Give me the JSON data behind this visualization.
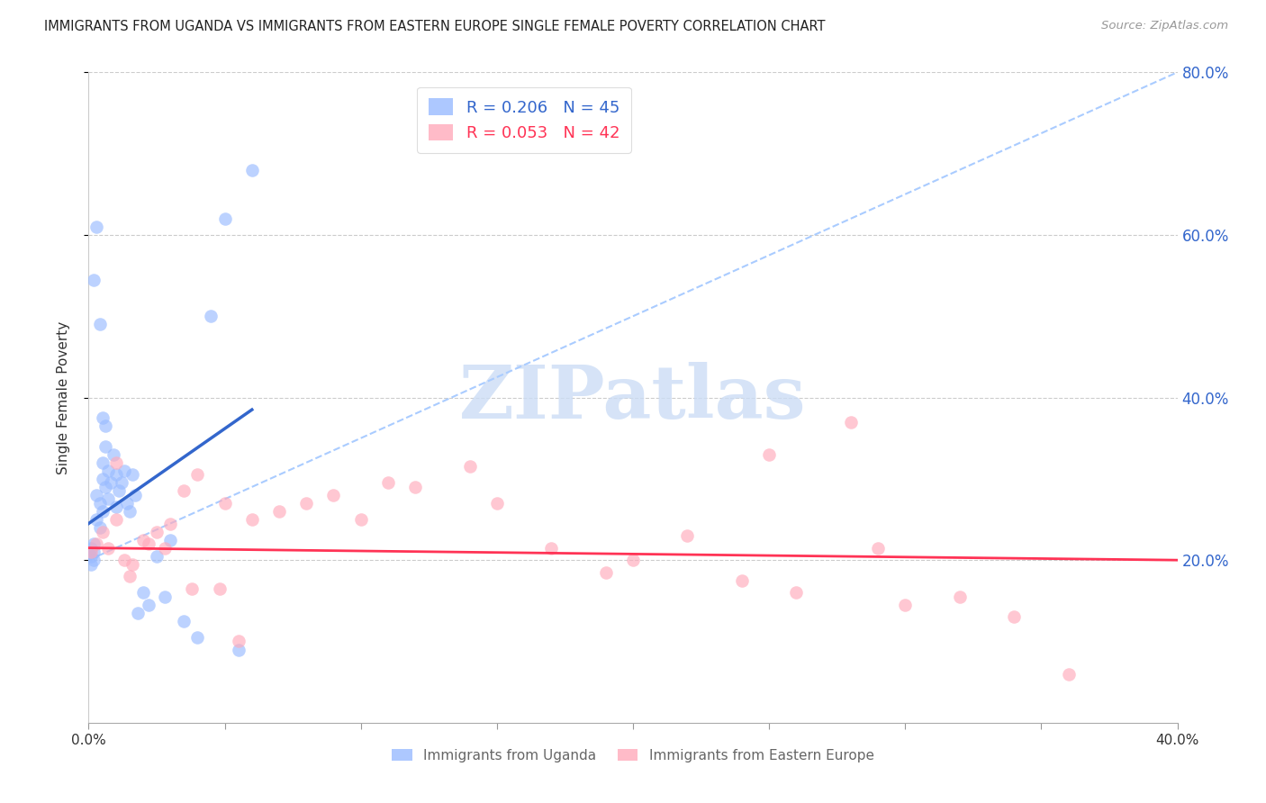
{
  "title": "IMMIGRANTS FROM UGANDA VS IMMIGRANTS FROM EASTERN EUROPE SINGLE FEMALE POVERTY CORRELATION CHART",
  "source": "Source: ZipAtlas.com",
  "ylabel": "Single Female Poverty",
  "legend_label1": "Immigrants from Uganda",
  "legend_label2": "Immigrants from Eastern Europe",
  "R1": "0.206",
  "N1": "45",
  "R2": "0.053",
  "N2": "42",
  "color_blue": "#99bbff",
  "color_pink": "#ffaabb",
  "color_blue_line": "#3366cc",
  "color_pink_line": "#ff3355",
  "color_dashed": "#aaccff",
  "color_right_axis": "#3366cc",
  "xlim": [
    0,
    0.4
  ],
  "ylim": [
    0,
    0.8
  ],
  "watermark": "ZIPatlas",
  "watermark_color": "#ccddf5",
  "uganda_x": [
    0.001,
    0.001,
    0.001,
    0.002,
    0.002,
    0.002,
    0.003,
    0.003,
    0.004,
    0.004,
    0.005,
    0.005,
    0.005,
    0.006,
    0.006,
    0.007,
    0.007,
    0.008,
    0.009,
    0.01,
    0.01,
    0.011,
    0.012,
    0.013,
    0.014,
    0.015,
    0.016,
    0.017,
    0.018,
    0.02,
    0.022,
    0.025,
    0.028,
    0.03,
    0.035,
    0.04,
    0.045,
    0.05,
    0.055,
    0.06,
    0.002,
    0.003,
    0.004,
    0.005,
    0.006
  ],
  "uganda_y": [
    0.195,
    0.205,
    0.215,
    0.2,
    0.21,
    0.22,
    0.28,
    0.25,
    0.24,
    0.27,
    0.32,
    0.3,
    0.26,
    0.34,
    0.29,
    0.31,
    0.275,
    0.295,
    0.33,
    0.305,
    0.265,
    0.285,
    0.295,
    0.31,
    0.27,
    0.26,
    0.305,
    0.28,
    0.135,
    0.16,
    0.145,
    0.205,
    0.155,
    0.225,
    0.125,
    0.105,
    0.5,
    0.62,
    0.09,
    0.68,
    0.545,
    0.61,
    0.49,
    0.375,
    0.365
  ],
  "easteurope_x": [
    0.001,
    0.003,
    0.005,
    0.007,
    0.01,
    0.013,
    0.016,
    0.02,
    0.025,
    0.03,
    0.035,
    0.04,
    0.05,
    0.06,
    0.07,
    0.08,
    0.09,
    0.1,
    0.11,
    0.12,
    0.14,
    0.15,
    0.17,
    0.19,
    0.2,
    0.22,
    0.24,
    0.25,
    0.26,
    0.28,
    0.3,
    0.32,
    0.34,
    0.36,
    0.01,
    0.015,
    0.022,
    0.028,
    0.038,
    0.048,
    0.055,
    0.29
  ],
  "easteurope_y": [
    0.21,
    0.22,
    0.235,
    0.215,
    0.25,
    0.2,
    0.195,
    0.225,
    0.235,
    0.245,
    0.285,
    0.305,
    0.27,
    0.25,
    0.26,
    0.27,
    0.28,
    0.25,
    0.295,
    0.29,
    0.315,
    0.27,
    0.215,
    0.185,
    0.2,
    0.23,
    0.175,
    0.33,
    0.16,
    0.37,
    0.145,
    0.155,
    0.13,
    0.06,
    0.32,
    0.18,
    0.22,
    0.215,
    0.165,
    0.165,
    0.1,
    0.215
  ],
  "uganda_line_x": [
    0.0,
    0.06
  ],
  "uganda_line_y": [
    0.245,
    0.385
  ],
  "dashed_line_x": [
    0.0,
    0.4
  ],
  "dashed_line_y": [
    0.2,
    0.8
  ],
  "ee_line_x": [
    0.0,
    0.4
  ],
  "ee_line_y": [
    0.215,
    0.2
  ]
}
